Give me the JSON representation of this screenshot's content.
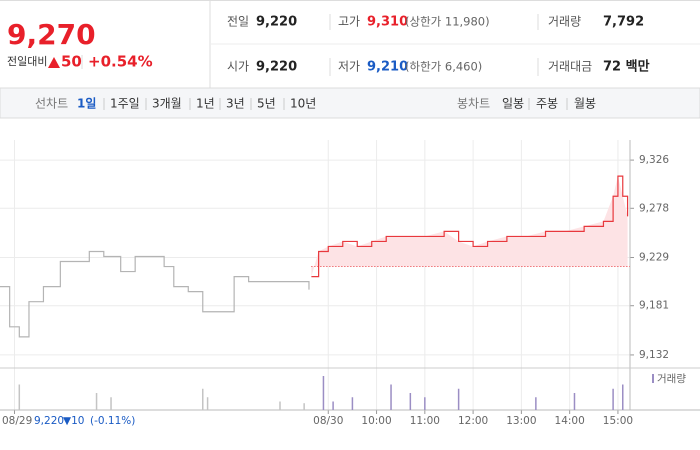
{
  "header": {
    "price": "9,270",
    "change_label": "전일대비",
    "change": "50",
    "rate": "+0.54%",
    "stats": [
      [
        {
          "label": "전일",
          "value": "9,220"
        },
        {
          "label": "고가",
          "value": "9,310",
          "note": "(상한가 11,980)"
        },
        {
          "label": "거래량",
          "value": "7,792"
        }
      ],
      [
        {
          "label": "시가",
          "value": "9,220"
        },
        {
          "label": "저가",
          "value": "9,210",
          "note": "(하한가 6,460)"
        },
        {
          "label": "거래대금",
          "value": "72 백만"
        }
      ]
    ]
  },
  "tabs": {
    "line_label": "선차트",
    "line": [
      "1일",
      "1주일",
      "3개월",
      "1년",
      "3년",
      "5년",
      "10년"
    ],
    "candle_label": "봉차트",
    "candle": [
      "일봉",
      "주봉",
      "월봉"
    ]
  },
  "footer": {
    "price": "9,220",
    "change": "▼10",
    "rate": "(-0.11%)"
  },
  "chart_data": {
    "type": "line",
    "xlim": [
      -0.3,
      12.75
    ],
    "xticks": [
      {
        "value": 0,
        "label": "08/29"
      },
      {
        "value": 6.5,
        "label": "08/30"
      },
      {
        "value": 7.5,
        "label": "10:00"
      },
      {
        "value": 8.5,
        "label": "11:00"
      },
      {
        "value": 9.5,
        "label": "12:00"
      },
      {
        "value": 10.5,
        "label": "13:00"
      },
      {
        "value": 11.5,
        "label": "14:00"
      },
      {
        "value": 12.5,
        "label": "15:00"
      }
    ],
    "ylim": [
      9116,
      9346
    ],
    "yticks": [
      {
        "value": 9326,
        "label": "9,326"
      },
      {
        "value": 9278,
        "label": "9,278"
      },
      {
        "value": 9229,
        "label": "9,229"
      },
      {
        "value": 9181,
        "label": "9,181"
      },
      {
        "value": 9132,
        "label": "9,132"
      }
    ],
    "grid": true,
    "reference": 9220,
    "reference_color": "#e8383d",
    "fill_color": "#fde3e5",
    "series": [
      {
        "color": "#b4b4b4",
        "x": [
          -0.3,
          -0.1,
          0.1,
          0.3,
          0.6,
          0.95,
          1.25,
          1.55,
          1.85,
          2.2,
          2.5,
          2.8,
          3.1,
          3.3,
          3.6,
          3.9,
          4.25,
          4.55,
          4.85,
          5.3,
          5.7,
          6.0,
          6.1
        ],
        "values": [
          9200,
          9160,
          9150,
          9185,
          9200,
          9225,
          9225,
          9235,
          9230,
          9215,
          9230,
          9230,
          9220,
          9200,
          9195,
          9175,
          9175,
          9210,
          9205,
          9205,
          9205,
          9205,
          9197
        ]
      },
      {
        "color": "#e8383d",
        "x": [
          6.15,
          6.3,
          6.5,
          6.8,
          7.1,
          7.4,
          7.7,
          8.0,
          8.5,
          8.9,
          9.2,
          9.5,
          9.8,
          10.2,
          10.6,
          11.0,
          11.4,
          11.8,
          12.2,
          12.4,
          12.5,
          12.6,
          12.7
        ],
        "values": [
          9210,
          9235,
          9240,
          9245,
          9240,
          9245,
          9250,
          9250,
          9250,
          9255,
          9245,
          9240,
          9245,
          9250,
          9250,
          9255,
          9255,
          9260,
          9265,
          9290,
          9310,
          9290,
          9270
        ]
      }
    ],
    "volume": {
      "name": "거래량",
      "series": [
        {
          "color": "#c4c4c4",
          "x": [
            0.1,
            1.7,
            2.0,
            3.9,
            4.0,
            5.5,
            6.0
          ],
          "values": [
            30,
            20,
            15,
            25,
            15,
            10,
            8
          ]
        },
        {
          "color": "#9b8ec4",
          "x": [
            6.4,
            6.6,
            7.0,
            7.8,
            8.2,
            8.5,
            9.2,
            10.8,
            11.6,
            12.4,
            12.6
          ],
          "values": [
            40,
            10,
            15,
            30,
            20,
            15,
            25,
            15,
            20,
            25,
            30
          ]
        }
      ]
    }
  }
}
